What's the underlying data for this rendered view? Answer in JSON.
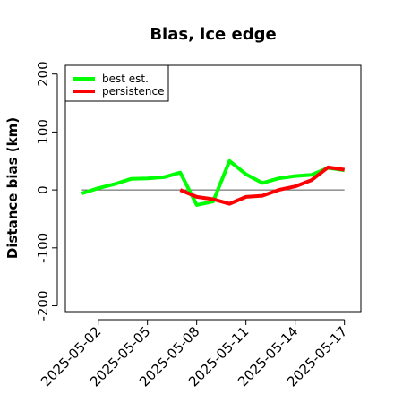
{
  "chart_data": {
    "type": "line",
    "title": "Bias, ice edge",
    "xlabel": "",
    "ylabel": "Distance bias (km)",
    "ylim": [
      -210,
      215
    ],
    "xlim": [
      "2025-04-30",
      "2025-05-18"
    ],
    "y_ticks": [
      -200,
      -100,
      0,
      100,
      200
    ],
    "x_ticks": [
      "2025-05-02",
      "2025-05-05",
      "2025-05-08",
      "2025-05-11",
      "2025-05-14",
      "2025-05-17"
    ],
    "zero_line": true,
    "grid": false,
    "legend_position": "top-left",
    "series": [
      {
        "name": "best est.",
        "color": "#00ff00",
        "points": [
          {
            "x": "2025-05-01",
            "y": -6
          },
          {
            "x": "2025-05-02",
            "y": 3
          },
          {
            "x": "2025-05-03",
            "y": 10
          },
          {
            "x": "2025-05-04",
            "y": 19
          },
          {
            "x": "2025-05-05",
            "y": 20
          },
          {
            "x": "2025-05-06",
            "y": 22
          },
          {
            "x": "2025-05-07",
            "y": 30
          },
          {
            "x": "2025-05-08",
            "y": -26
          },
          {
            "x": "2025-05-09",
            "y": -20
          },
          {
            "x": "2025-05-10",
            "y": 50
          },
          {
            "x": "2025-05-11",
            "y": 27
          },
          {
            "x": "2025-05-12",
            "y": 12
          },
          {
            "x": "2025-05-13",
            "y": 20
          },
          {
            "x": "2025-05-14",
            "y": 24
          },
          {
            "x": "2025-05-15",
            "y": 26
          },
          {
            "x": "2025-05-16",
            "y": 38
          },
          {
            "x": "2025-05-17",
            "y": 34
          }
        ]
      },
      {
        "name": "persistence",
        "color": "#ff0000",
        "points": [
          {
            "x": "2025-05-07",
            "y": 0
          },
          {
            "x": "2025-05-08",
            "y": -12
          },
          {
            "x": "2025-05-09",
            "y": -16
          },
          {
            "x": "2025-05-10",
            "y": -24
          },
          {
            "x": "2025-05-11",
            "y": -12
          },
          {
            "x": "2025-05-12",
            "y": -10
          },
          {
            "x": "2025-05-13",
            "y": 0
          },
          {
            "x": "2025-05-14",
            "y": 6
          },
          {
            "x": "2025-05-15",
            "y": 17
          },
          {
            "x": "2025-05-16",
            "y": 39
          },
          {
            "x": "2025-05-17",
            "y": 35
          }
        ]
      }
    ]
  }
}
